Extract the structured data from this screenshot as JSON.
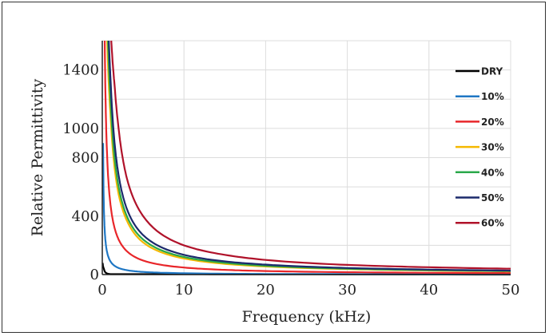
{
  "chart_data": {
    "type": "line",
    "title": "",
    "xlabel": "Frequency (kHz)",
    "ylabel": "Relative Permittivity",
    "xlim": [
      0,
      50
    ],
    "ylim": [
      0,
      1600
    ],
    "x_ticks": [
      0,
      10,
      20,
      30,
      40,
      50
    ],
    "y_ticks": [
      0,
      400,
      800,
      1000,
      1400
    ],
    "grid": true,
    "legend_position": "right",
    "series": [
      {
        "name": "DRY",
        "color": "#000000",
        "x": [
          0.05,
          0.2,
          0.5,
          1,
          50
        ],
        "y": [
          80,
          40,
          10,
          3,
          0
        ]
      },
      {
        "name": "10%",
        "color": "#1f77c4",
        "x": [
          0.1,
          0.3,
          0.5,
          1,
          2,
          3,
          5,
          10,
          20,
          30,
          50
        ],
        "y": [
          900,
          300,
          180,
          90,
          45,
          30,
          18,
          9,
          4,
          3,
          2
        ]
      },
      {
        "name": "20%",
        "color": "#e8262a",
        "x": [
          0.3,
          0.5,
          1,
          2,
          3,
          5,
          10,
          15,
          20,
          30,
          40,
          50
        ],
        "y": [
          1600,
          960,
          480,
          240,
          160,
          96,
          48,
          32,
          24,
          16,
          12,
          10
        ]
      },
      {
        "name": "30%",
        "color": "#f5b800",
        "x": [
          0.6,
          1,
          2,
          3,
          5,
          10,
          15,
          20,
          30,
          40,
          50
        ],
        "y": [
          1600,
          1100,
          550,
          370,
          220,
          110,
          73,
          55,
          37,
          28,
          22
        ]
      },
      {
        "name": "40%",
        "color": "#2aa84a",
        "x": [
          0.7,
          1,
          2,
          3,
          5,
          10,
          15,
          20,
          30,
          40,
          50
        ],
        "y": [
          1600,
          1200,
          600,
          400,
          240,
          120,
          80,
          60,
          40,
          30,
          24
        ]
      },
      {
        "name": "50%",
        "color": "#1b2a6b",
        "x": [
          0.8,
          1,
          2,
          3,
          5,
          10,
          15,
          20,
          30,
          40,
          50
        ],
        "y": [
          1600,
          1350,
          680,
          450,
          270,
          135,
          90,
          68,
          45,
          34,
          27
        ]
      },
      {
        "name": "60%",
        "color": "#b0122a",
        "x": [
          1.1,
          1.5,
          2,
          3,
          5,
          10,
          15,
          20,
          30,
          40,
          50
        ],
        "y": [
          1600,
          1300,
          1000,
          660,
          400,
          200,
          135,
          100,
          66,
          50,
          40
        ]
      }
    ]
  }
}
